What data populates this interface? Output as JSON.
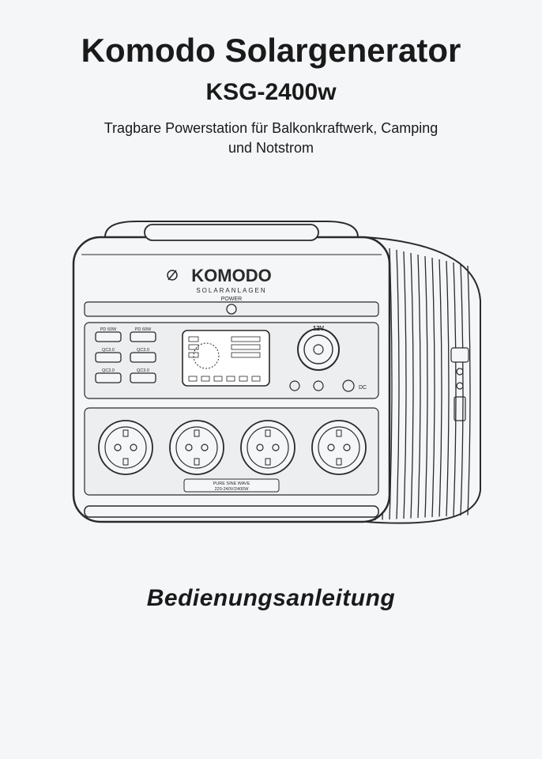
{
  "title": "Komodo Solargenerator",
  "model": "KSG-2400w",
  "subtitle_line1": "Tragbare Powerstation für Balkonkraftwerk, Camping",
  "subtitle_line2": "und Notstrom",
  "footer": "Bedienungsanleitung",
  "device": {
    "brand_upper": "KOMODO",
    "brand_sub": "SOLARANLAGEN",
    "power_label": "POWER",
    "usb_labels": [
      "PD 60W",
      "PD 60W",
      "QC3.0",
      "QC3.0",
      "QC3.0",
      "QC3.0"
    ],
    "car_port": "12V",
    "dc_label": "DC",
    "bottom_text": "PURE SINE WAVE",
    "bottom_spec": "220-240V/2400W",
    "stroke": "#2a2a2a",
    "fill": "#f4f6f8",
    "panel_fill": "#eceef0"
  }
}
